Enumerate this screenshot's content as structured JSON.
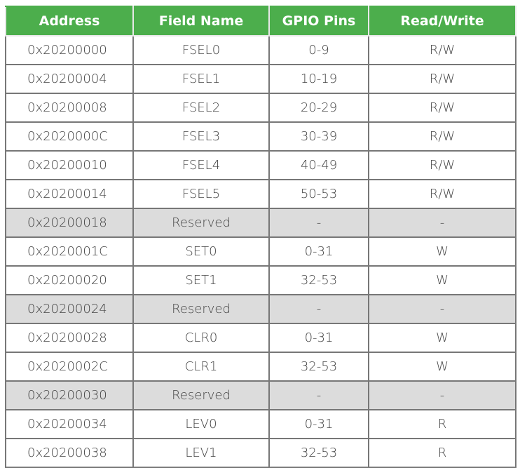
{
  "headers": [
    "Address",
    "Field Name",
    "GPIO Pins",
    "Read/Write"
  ],
  "rows": [
    {
      "address": "0x20200000",
      "field": "FSEL0",
      "pins": "0-9",
      "rw": "R/W",
      "reserved": false
    },
    {
      "address": "0x20200004",
      "field": "FSEL1",
      "pins": "10-19",
      "rw": "R/W",
      "reserved": false
    },
    {
      "address": "0x20200008",
      "field": "FSEL2",
      "pins": "20-29",
      "rw": "R/W",
      "reserved": false
    },
    {
      "address": "0x2020000C",
      "field": "FSEL3",
      "pins": "30-39",
      "rw": "R/W",
      "reserved": false
    },
    {
      "address": "0x20200010",
      "field": "FSEL4",
      "pins": "40-49",
      "rw": "R/W",
      "reserved": false
    },
    {
      "address": "0x20200014",
      "field": "FSEL5",
      "pins": "50-53",
      "rw": "R/W",
      "reserved": false
    },
    {
      "address": "0x20200018",
      "field": "Reserved",
      "pins": "-",
      "rw": "-",
      "reserved": true
    },
    {
      "address": "0x2020001C",
      "field": "SET0",
      "pins": "0-31",
      "rw": "W",
      "reserved": false
    },
    {
      "address": "0x20200020",
      "field": "SET1",
      "pins": "32-53",
      "rw": "W",
      "reserved": false
    },
    {
      "address": "0x20200024",
      "field": "Reserved",
      "pins": "-",
      "rw": "-",
      "reserved": true
    },
    {
      "address": "0x20200028",
      "field": "CLR0",
      "pins": "0-31",
      "rw": "W",
      "reserved": false
    },
    {
      "address": "0x2020002C",
      "field": "CLR1",
      "pins": "32-53",
      "rw": "W",
      "reserved": false
    },
    {
      "address": "0x20200030",
      "field": "Reserved",
      "pins": "-",
      "rw": "-",
      "reserved": true
    },
    {
      "address": "0x20200034",
      "field": "LEV0",
      "pins": "0-31",
      "rw": "R",
      "reserved": false
    },
    {
      "address": "0x20200038",
      "field": "LEV1",
      "pins": "32-53",
      "rw": "R",
      "reserved": false
    }
  ],
  "colors": {
    "header_bg": "#4cae4c",
    "header_text": "#ffffff",
    "reserved_row_bg": "#dcdcdc",
    "border": "#777777"
  }
}
